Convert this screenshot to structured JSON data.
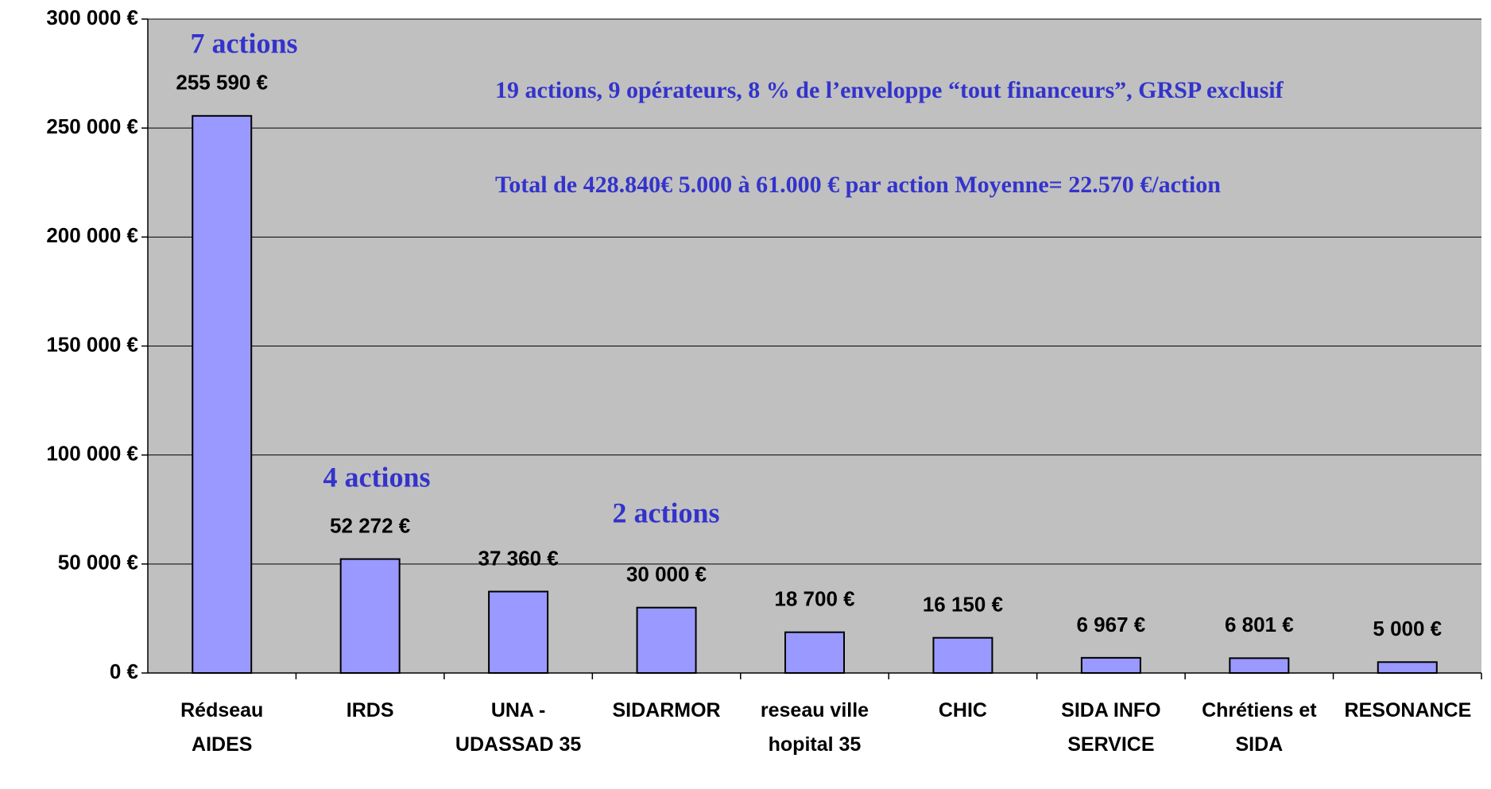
{
  "chart_data": {
    "type": "bar",
    "categories": [
      "Rédseau AIDES",
      "IRDS",
      "UNA - UDASSAD 35",
      "SIDARMOR",
      "reseau ville hopital 35",
      "CHIC",
      "SIDA INFO SERVICE",
      "Chrétiens et SIDA",
      "RESONANCE"
    ],
    "values": [
      255590,
      52272,
      37360,
      30000,
      18700,
      16150,
      6967,
      6801,
      5000
    ],
    "value_labels": [
      "255 590 €",
      "52 272 €",
      "37 360 €",
      "30 000 €",
      "18 700 €",
      "16 150 €",
      "6 967 €",
      "6 801 €",
      "5 000 €"
    ],
    "color": "#9999ff",
    "ylim": [
      0,
      300000
    ],
    "yticks": [
      {
        "value": 0,
        "label": "0 €"
      },
      {
        "value": 50000,
        "label": "50 000 €"
      },
      {
        "value": 100000,
        "label": "100 000 €"
      },
      {
        "value": 150000,
        "label": "150 000 €"
      },
      {
        "value": 200000,
        "label": "200 000 €"
      },
      {
        "value": 250000,
        "label": "250 000 €"
      },
      {
        "value": 300000,
        "label": "300 000 €"
      }
    ],
    "grid": true,
    "annotations": [
      "7 actions",
      "4 actions",
      "2 actions",
      "19 actions, 9 opérateurs, 8 % de l’enveloppe “tout financeurs”, GRSP exclusif",
      "Total de 428.840€    5.000 à 61.000 € par action  Moyenne= 22.570 €/action"
    ]
  }
}
